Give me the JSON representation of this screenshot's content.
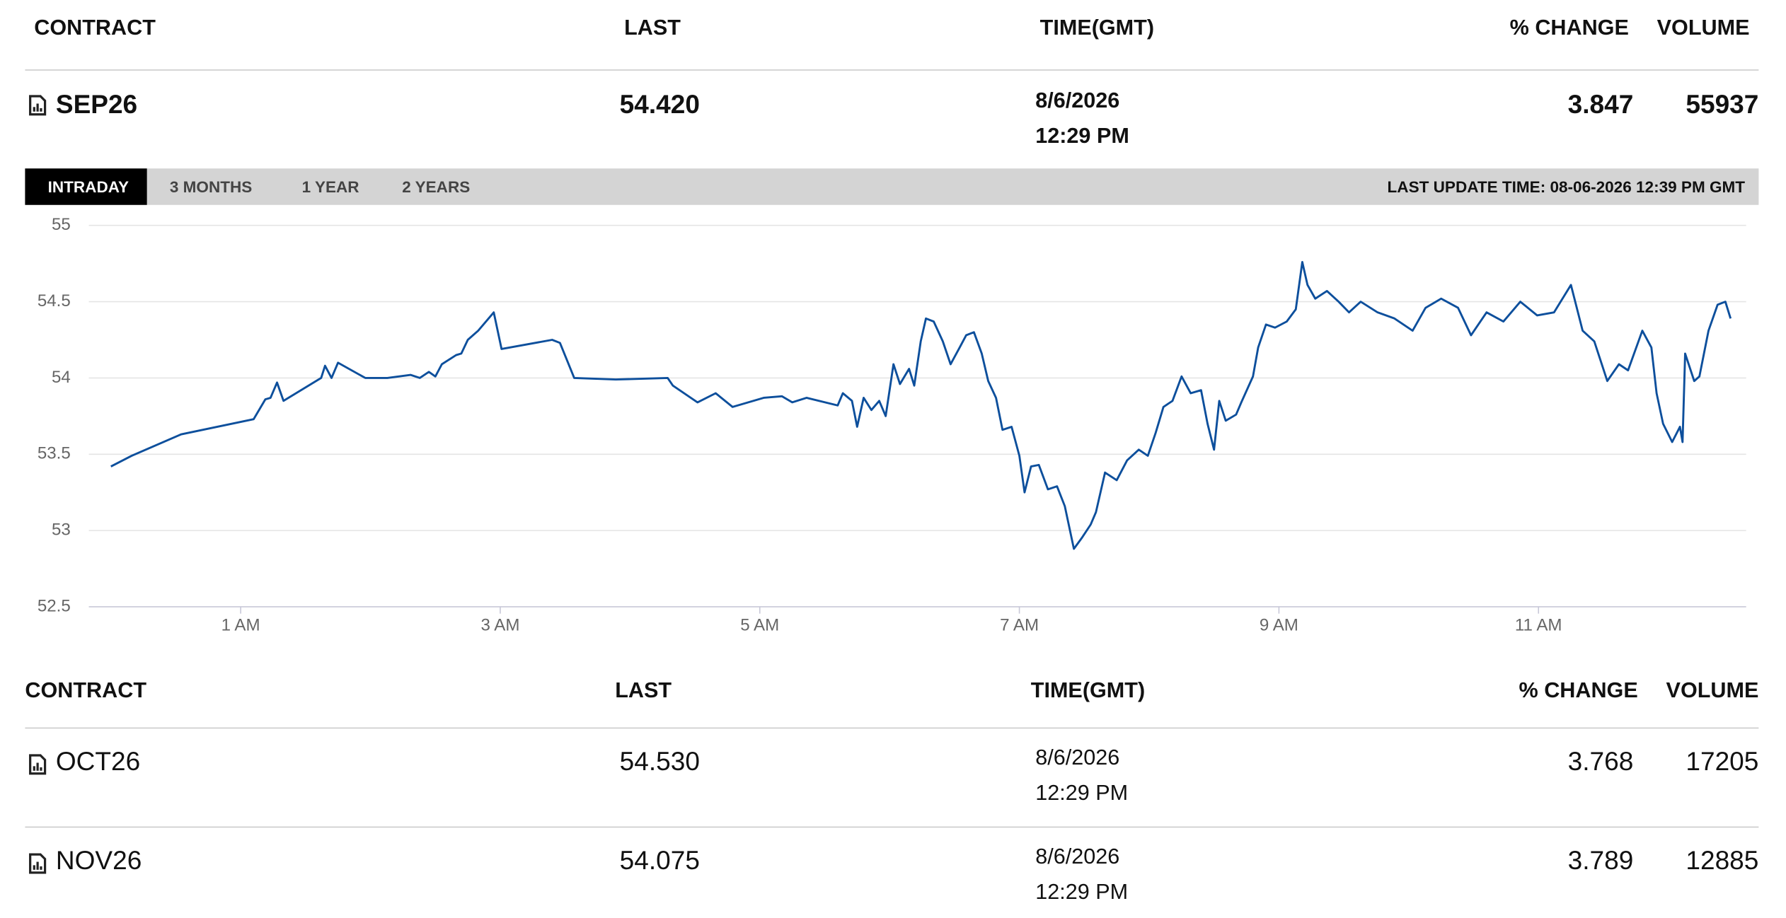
{
  "top_table": {
    "header": [
      "CONTRACT",
      "LAST",
      "TIME(GMT)",
      "% CHANGE",
      "VOLUME"
    ],
    "row": {
      "contract": "SEP26",
      "last": "54.420",
      "date": "8/6/2026",
      "time": "12:29 PM",
      "change": "3.847",
      "volume": "55937"
    }
  },
  "tabs": {
    "items": [
      "INTRADAY",
      "3 MONTHS",
      "1 YEAR",
      "2 YEARS"
    ],
    "last_update": "LAST UPDATE TIME: 08-06-2026 12:39 PM GMT"
  },
  "chart_data": {
    "type": "line",
    "color": "#0d4f9c",
    "grid": true,
    "xlim": [
      -0.17,
      12.6
    ],
    "ylim": [
      52.5,
      55
    ],
    "xticks": [
      {
        "value": 1,
        "label": "1 AM"
      },
      {
        "value": 3,
        "label": "3 AM"
      },
      {
        "value": 5,
        "label": "5 AM"
      },
      {
        "value": 7,
        "label": "7 AM"
      },
      {
        "value": 9,
        "label": "9 AM"
      },
      {
        "value": 11,
        "label": "11 AM"
      }
    ],
    "yticks": [
      52.5,
      53,
      53.5,
      54,
      54.5,
      55
    ],
    "x": [
      0.0,
      0.16,
      0.54,
      1.1,
      1.19,
      1.23,
      1.28,
      1.33,
      1.62,
      1.65,
      1.7,
      1.75,
      1.96,
      2.13,
      2.31,
      2.38,
      2.45,
      2.5,
      2.55,
      2.66,
      2.7,
      2.75,
      2.83,
      2.95,
      3.01,
      3.4,
      3.46,
      3.57,
      3.89,
      4.29,
      4.33,
      4.52,
      4.66,
      4.79,
      5.03,
      5.17,
      5.25,
      5.36,
      5.6,
      5.64,
      5.71,
      5.75,
      5.8,
      5.86,
      5.92,
      5.97,
      6.03,
      6.08,
      6.15,
      6.19,
      6.24,
      6.28,
      6.34,
      6.41,
      6.47,
      6.54,
      6.59,
      6.65,
      6.71,
      6.76,
      6.82,
      6.87,
      6.94,
      7.0,
      7.04,
      7.09,
      7.15,
      7.22,
      7.29,
      7.35,
      7.42,
      7.48,
      7.55,
      7.59,
      7.66,
      7.75,
      7.83,
      7.92,
      7.99,
      8.05,
      8.11,
      8.18,
      8.25,
      8.32,
      8.4,
      8.45,
      8.5,
      8.54,
      8.59,
      8.67,
      8.71,
      8.8,
      8.84,
      8.9,
      8.97,
      9.06,
      9.13,
      9.18,
      9.22,
      9.28,
      9.37,
      9.46,
      9.54,
      9.63,
      9.76,
      9.89,
      10.03,
      10.13,
      10.25,
      10.38,
      10.48,
      10.6,
      10.73,
      10.86,
      10.99,
      11.12,
      11.25,
      11.34,
      11.43,
      11.53,
      11.62,
      11.69,
      11.8,
      11.87,
      11.91,
      11.96,
      12.03,
      12.09,
      12.11,
      12.13,
      12.2,
      12.24,
      12.31,
      12.38,
      12.44,
      12.48
    ],
    "values": [
      53.42,
      53.49,
      53.63,
      53.73,
      53.86,
      53.87,
      53.97,
      53.85,
      54.0,
      54.08,
      54.0,
      54.1,
      54.0,
      54.0,
      54.02,
      54.0,
      54.04,
      54.01,
      54.09,
      54.15,
      54.16,
      54.25,
      54.31,
      54.43,
      54.19,
      54.25,
      54.23,
      54.0,
      53.99,
      54.0,
      53.95,
      53.84,
      53.9,
      53.81,
      53.87,
      53.88,
      53.84,
      53.87,
      53.82,
      53.9,
      53.85,
      53.68,
      53.87,
      53.79,
      53.85,
      53.75,
      54.09,
      53.96,
      54.06,
      53.95,
      54.24,
      54.39,
      54.37,
      54.24,
      54.09,
      54.2,
      54.28,
      54.3,
      54.16,
      53.98,
      53.87,
      53.66,
      53.68,
      53.49,
      53.25,
      53.42,
      53.43,
      53.27,
      53.29,
      53.16,
      52.88,
      52.95,
      53.04,
      53.12,
      53.38,
      53.33,
      53.46,
      53.53,
      53.49,
      53.64,
      53.81,
      53.85,
      54.01,
      53.9,
      53.92,
      53.7,
      53.53,
      53.85,
      53.72,
      53.76,
      53.84,
      54.01,
      54.2,
      54.35,
      54.33,
      54.37,
      54.45,
      54.76,
      54.61,
      54.52,
      54.57,
      54.5,
      54.43,
      54.5,
      54.43,
      54.39,
      54.31,
      54.46,
      54.52,
      54.46,
      54.28,
      54.43,
      54.37,
      54.5,
      54.41,
      54.43,
      54.61,
      54.31,
      54.24,
      53.98,
      54.09,
      54.05,
      54.31,
      54.2,
      53.9,
      53.7,
      53.58,
      53.68,
      53.58,
      54.16,
      53.98,
      54.01,
      54.31,
      54.48,
      54.5,
      54.39
    ]
  },
  "bottom_table": {
    "header": [
      "CONTRACT",
      "LAST",
      "TIME(GMT)",
      "% CHANGE",
      "VOLUME"
    ],
    "rows": [
      {
        "contract": "OCT26",
        "last": "54.530",
        "date": "8/6/2026",
        "time": "12:29 PM",
        "change": "3.768",
        "volume": "17205"
      },
      {
        "contract": "NOV26",
        "last": "54.075",
        "date": "8/6/2026",
        "time": "12:29 PM",
        "change": "3.789",
        "volume": "12885"
      }
    ]
  }
}
